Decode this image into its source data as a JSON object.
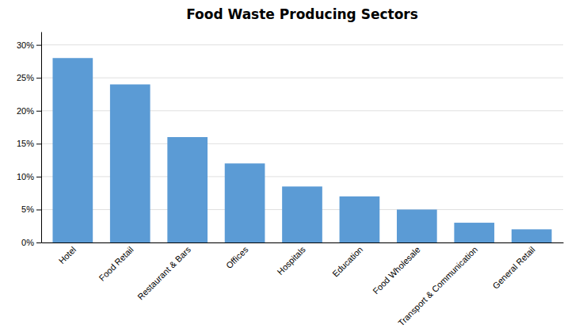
{
  "chart_data": {
    "type": "bar",
    "title": "Food Waste Producing Sectors",
    "categories": [
      "Hotel",
      "Food Retail",
      "Restaurant & Bars",
      "Offices",
      "Hospitals",
      "Education",
      "Food Wholesale",
      "Transport & Communication",
      "General Retail"
    ],
    "values": [
      28,
      24,
      16,
      12,
      8.5,
      7,
      5,
      3,
      2
    ],
    "color": "#5B9BD5",
    "ylim": [
      0,
      32
    ],
    "yticks": [
      {
        "value": 0,
        "label": "0%"
      },
      {
        "value": 5,
        "label": "5%"
      },
      {
        "value": 10,
        "label": "10%"
      },
      {
        "value": 15,
        "label": "15%"
      },
      {
        "value": 20,
        "label": "20%"
      },
      {
        "value": 25,
        "label": "25%"
      },
      {
        "value": 30,
        "label": "30%"
      }
    ],
    "grid": true
  }
}
